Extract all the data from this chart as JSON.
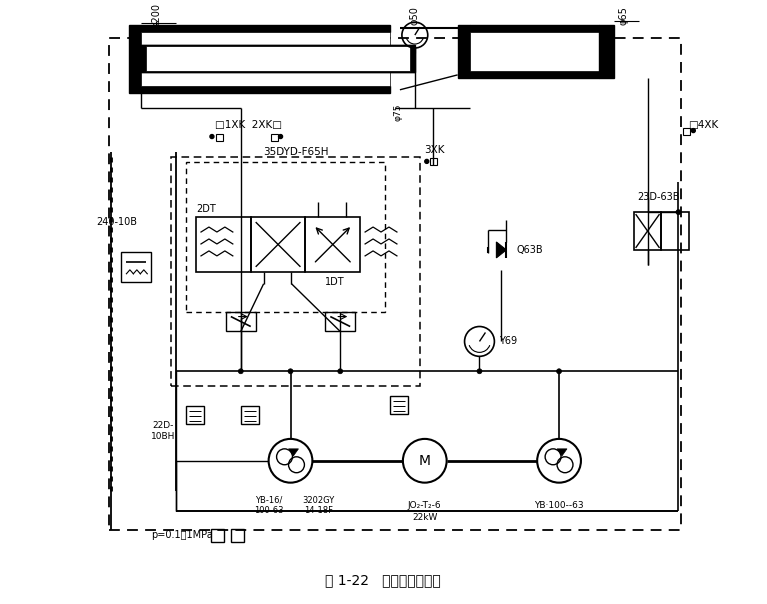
{
  "title": "图 1-22   改进后的油路图",
  "bg_color": "#ffffff",
  "lc": "#000000",
  "labels": {
    "phi200": "φ200",
    "phi50": "φ50",
    "phi65": "φ65",
    "phi75": "φ75",
    "1XK_2XK": "□1XK  2XK□",
    "3XK": "3XK",
    "4XK": "□4XK",
    "35DYD": "35DYD-F65H",
    "2DT": "2DT",
    "1DT": "1DT",
    "240_10B": "240-10B",
    "22D_10BH": "22D-\n10BH",
    "YB16": "YB-16/\n100-63",
    "3202GY": "3202GY\n14-18F",
    "JO2": "JO₂-T₂-6",
    "22kW": "22kW",
    "YB100": "YB·100--63",
    "Y69": "Y69",
    "Q63B": "Q63B",
    "23D_63B": "23D-63B",
    "p_label": "p=0.1～1MPa"
  }
}
